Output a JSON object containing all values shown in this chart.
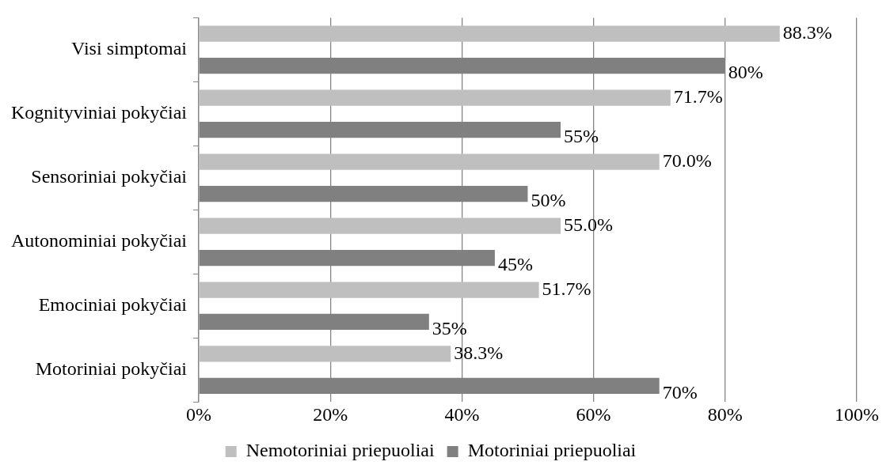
{
  "chart_data": {
    "type": "bar",
    "orientation": "horizontal",
    "categories": [
      "Visi simptomai",
      "Kognityviniai pokyčiai",
      "Sensoriniai pokyčiai",
      "Autonominiai pokyčiai",
      "Emociniai pokyčiai",
      "Motoriniai pokyčiai"
    ],
    "series": [
      {
        "name": "Nemotoriniai priepuoliai",
        "color": "#bfbfbf",
        "values": [
          88.3,
          71.7,
          70.0,
          55.0,
          51.7,
          38.3
        ],
        "value_labels": [
          "88.3%",
          "71.7%",
          "70.0%",
          "55.0%",
          "51.7%",
          "38.3%"
        ]
      },
      {
        "name": "Motoriniai priepuoliai",
        "color": "#808080",
        "values": [
          80,
          55,
          50,
          45,
          35,
          70
        ],
        "value_labels": [
          "80%",
          "55%",
          "50%",
          "45%",
          "35%",
          "70%"
        ]
      }
    ],
    "xlim": [
      0,
      100
    ],
    "xticks": [
      {
        "value": 0,
        "label": "0%"
      },
      {
        "value": 20,
        "label": "20%"
      },
      {
        "value": 40,
        "label": "40%"
      },
      {
        "value": 60,
        "label": "60%"
      },
      {
        "value": 80,
        "label": "80%"
      },
      {
        "value": 100,
        "label": "100%"
      }
    ],
    "grid": "x",
    "legend": "bottom"
  }
}
